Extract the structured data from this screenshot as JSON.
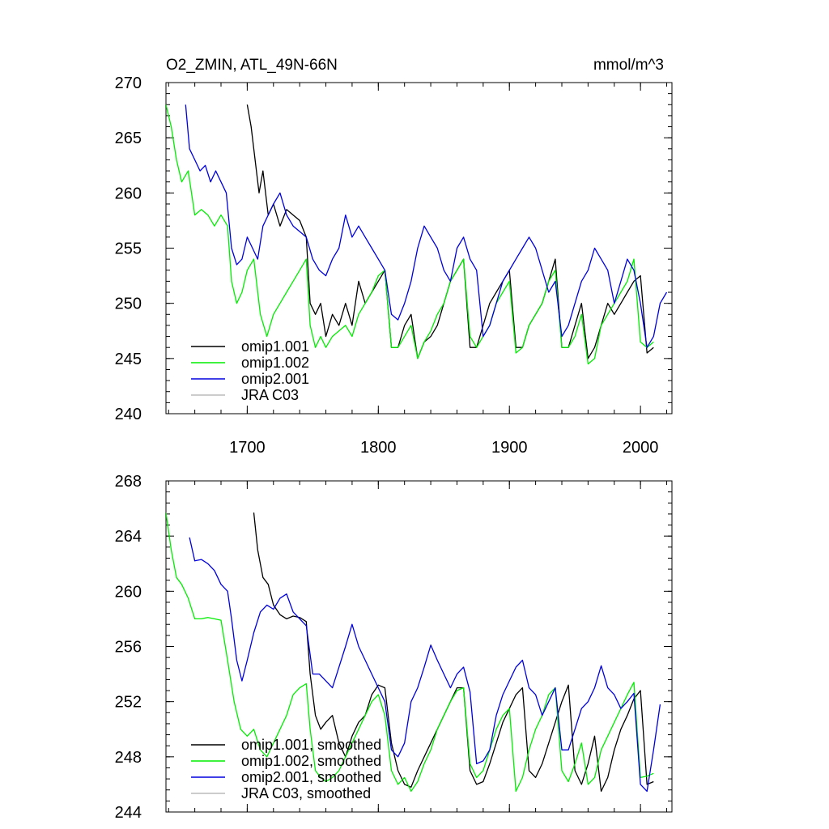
{
  "chart_data": [
    {
      "type": "line",
      "title": "O2_ZMIN, ATL_49N-66N",
      "units": "mmol/m^3",
      "xlabel": "",
      "ylabel": "",
      "xlim": [
        1638,
        2024
      ],
      "ylim": [
        240,
        270
      ],
      "x_ticks": [
        1700,
        1800,
        1900,
        2000
      ],
      "x_tick_labels": [
        "1700",
        "1800",
        "1900",
        "2000"
      ],
      "y_ticks": [
        240,
        245,
        250,
        255,
        260,
        265,
        270
      ],
      "y_tick_labels": [
        "240",
        "245",
        "250",
        "255",
        "260",
        "265",
        "270"
      ],
      "legend_position": "bottom-left",
      "series": [
        {
          "name": "omip1.001",
          "color": "#000000",
          "x": [
            1700,
            1703,
            1706,
            1709,
            1712,
            1716,
            1720,
            1725,
            1730,
            1735,
            1740,
            1745,
            1748,
            1752,
            1756,
            1760,
            1765,
            1770,
            1775,
            1780,
            1785,
            1790,
            1795,
            1800,
            1805,
            1810,
            1815,
            1820,
            1825,
            1830,
            1835,
            1840,
            1845,
            1850,
            1855,
            1860,
            1865,
            1870,
            1875,
            1880,
            1885,
            1890,
            1895,
            1900,
            1905,
            1910,
            1915,
            1920,
            1925,
            1930,
            1935,
            1940,
            1945,
            1950,
            1955,
            1960,
            1965,
            1970,
            1975,
            1980,
            1985,
            1990,
            1995,
            2000,
            2005,
            2010
          ],
          "y": [
            268,
            266,
            263,
            260,
            262,
            258,
            259,
            257,
            258.5,
            258,
            257.5,
            256,
            250,
            249,
            250,
            247,
            249,
            248,
            250,
            248,
            252,
            250,
            251,
            252,
            253,
            246,
            246,
            248,
            249,
            245,
            246.5,
            247,
            248,
            250,
            252,
            253,
            254,
            246,
            246,
            248,
            250,
            251,
            252,
            253,
            246,
            246,
            248,
            249,
            250,
            252,
            254,
            246,
            246,
            248,
            250,
            245,
            246,
            248,
            250,
            249,
            250,
            251,
            252,
            252.5,
            245.5,
            246
          ]
        },
        {
          "name": "omip1.002",
          "color": "#00ee00",
          "x": [
            1638,
            1642,
            1646,
            1650,
            1655,
            1660,
            1665,
            1670,
            1675,
            1680,
            1685,
            1688,
            1692,
            1696,
            1700,
            1705,
            1710,
            1715,
            1720,
            1725,
            1730,
            1735,
            1740,
            1745,
            1748,
            1752,
            1756,
            1760,
            1765,
            1770,
            1775,
            1780,
            1785,
            1790,
            1795,
            1800,
            1805,
            1810,
            1815,
            1820,
            1825,
            1830,
            1835,
            1840,
            1845,
            1850,
            1855,
            1860,
            1865,
            1870,
            1875,
            1880,
            1885,
            1890,
            1895,
            1900,
            1905,
            1910,
            1915,
            1920,
            1925,
            1930,
            1935,
            1940,
            1945,
            1950,
            1955,
            1960,
            1965,
            1970,
            1975,
            1980,
            1985,
            1990,
            1995,
            2000,
            2005,
            2010
          ],
          "y": [
            268,
            266,
            263,
            261,
            262,
            258,
            258.5,
            258,
            257,
            258,
            257,
            252,
            250,
            251,
            253,
            254,
            249,
            247,
            249,
            250,
            251,
            252,
            253,
            254,
            248,
            246,
            247,
            246,
            247,
            247.5,
            248,
            247,
            249,
            250,
            251,
            252.5,
            253,
            246,
            246,
            247,
            248,
            245,
            246.5,
            247.5,
            249,
            250,
            252,
            253,
            254,
            247,
            246,
            247,
            248,
            250,
            251,
            252,
            245.5,
            246,
            248,
            249,
            250,
            252,
            253,
            246,
            246,
            247,
            249,
            244.5,
            245,
            248,
            249,
            250,
            251,
            252,
            254,
            246.5,
            246,
            246.5
          ]
        },
        {
          "name": "omip2.001",
          "color": "#0000dd",
          "x": [
            1653,
            1656,
            1660,
            1664,
            1668,
            1672,
            1676,
            1680,
            1684,
            1688,
            1692,
            1696,
            1700,
            1704,
            1708,
            1712,
            1716,
            1720,
            1725,
            1730,
            1735,
            1740,
            1745,
            1750,
            1755,
            1760,
            1765,
            1770,
            1775,
            1780,
            1785,
            1790,
            1795,
            1800,
            1805,
            1810,
            1815,
            1820,
            1825,
            1830,
            1835,
            1840,
            1845,
            1850,
            1855,
            1860,
            1865,
            1870,
            1875,
            1880,
            1885,
            1890,
            1895,
            1900,
            1905,
            1910,
            1915,
            1920,
            1925,
            1930,
            1935,
            1940,
            1945,
            1950,
            1955,
            1960,
            1965,
            1970,
            1975,
            1980,
            1985,
            1990,
            1995,
            2000,
            2005,
            2010,
            2015,
            2020
          ],
          "y": [
            268,
            264,
            263,
            262,
            262.5,
            261,
            262,
            261,
            260,
            255,
            253.5,
            254,
            256,
            255,
            254,
            257,
            258,
            259,
            260,
            258,
            257,
            256.5,
            256,
            254,
            253,
            252.5,
            254,
            255,
            258,
            256,
            257,
            256,
            255,
            254,
            253,
            249,
            248.5,
            250,
            252,
            255,
            257,
            256,
            255,
            253,
            252,
            255,
            256,
            254,
            253,
            247,
            248,
            250,
            252,
            253,
            254,
            255,
            256,
            255,
            253,
            251,
            252,
            247,
            248,
            250,
            252,
            253,
            255,
            254,
            253,
            250,
            252,
            254,
            253,
            250,
            246,
            247,
            250,
            251
          ]
        }
      ],
      "legend": [
        "omip1.001",
        "omip1.002",
        "omip2.001",
        "JRA C03"
      ],
      "legend_colors": [
        "#000000",
        "#00ee00",
        "#0000dd",
        "#bbbbbb"
      ]
    },
    {
      "type": "line",
      "title": "",
      "xlabel": "",
      "ylabel": "",
      "xlim": [
        1638,
        2024
      ],
      "ylim": [
        244,
        268
      ],
      "x_ticks": [
        1700,
        1800,
        1900,
        2000
      ],
      "y_ticks": [
        244,
        248,
        252,
        256,
        260,
        264,
        268
      ],
      "y_tick_labels": [
        "244",
        "248",
        "252",
        "256",
        "260",
        "264",
        "268"
      ],
      "legend_position": "bottom-left",
      "series": [
        {
          "name": "omip1.001, smoothed",
          "color": "#000000",
          "x": [
            1705,
            1708,
            1712,
            1716,
            1720,
            1725,
            1730,
            1735,
            1740,
            1745,
            1748,
            1752,
            1756,
            1760,
            1765,
            1770,
            1775,
            1780,
            1785,
            1790,
            1795,
            1800,
            1805,
            1810,
            1815,
            1820,
            1825,
            1830,
            1835,
            1840,
            1845,
            1850,
            1855,
            1860,
            1865,
            1870,
            1875,
            1880,
            1885,
            1890,
            1895,
            1900,
            1905,
            1910,
            1915,
            1920,
            1925,
            1930,
            1935,
            1940,
            1945,
            1950,
            1955,
            1960,
            1965,
            1970,
            1975,
            1980,
            1985,
            1990,
            1995,
            2000,
            2005,
            2010
          ],
          "y": [
            265.7,
            263,
            261,
            260.5,
            259,
            258.3,
            258,
            258.2,
            258.1,
            257.8,
            254,
            251,
            250,
            250.5,
            251,
            249,
            248,
            249.5,
            250.5,
            251,
            252.5,
            253.2,
            253,
            249,
            247,
            246,
            245.8,
            247,
            248,
            249,
            250,
            251,
            252,
            253,
            253,
            247,
            246,
            246.2,
            247.5,
            249,
            250.5,
            251.5,
            252.5,
            253,
            247,
            246.5,
            247.5,
            249,
            250.5,
            252,
            253.2,
            247,
            246,
            247.5,
            249.5,
            245.5,
            246.5,
            248.5,
            250,
            251,
            252.2,
            252.8,
            246,
            246.2
          ]
        },
        {
          "name": "omip1.002, smoothed",
          "color": "#00ee00",
          "x": [
            1638,
            1642,
            1646,
            1650,
            1655,
            1660,
            1665,
            1670,
            1675,
            1680,
            1685,
            1690,
            1695,
            1700,
            1705,
            1710,
            1715,
            1720,
            1725,
            1730,
            1735,
            1740,
            1745,
            1748,
            1752,
            1756,
            1760,
            1765,
            1770,
            1775,
            1780,
            1785,
            1790,
            1795,
            1800,
            1805,
            1810,
            1815,
            1820,
            1825,
            1830,
            1835,
            1840,
            1845,
            1850,
            1855,
            1860,
            1865,
            1870,
            1875,
            1880,
            1885,
            1890,
            1895,
            1900,
            1905,
            1910,
            1915,
            1920,
            1925,
            1930,
            1935,
            1940,
            1945,
            1950,
            1955,
            1960,
            1965,
            1970,
            1975,
            1980,
            1985,
            1990,
            1995,
            2000,
            2005,
            2010
          ],
          "y": [
            265.7,
            263,
            261,
            260.5,
            259.5,
            258,
            258,
            258.1,
            258,
            257.9,
            255,
            252,
            250,
            249.5,
            250,
            248.5,
            248,
            249,
            250,
            251,
            252.5,
            253,
            253.3,
            250,
            247,
            246.5,
            246.2,
            246.5,
            247,
            248,
            249,
            250,
            251,
            252,
            252.5,
            251,
            247,
            246,
            246.5,
            245.5,
            246.2,
            247.5,
            248.5,
            250,
            251,
            252,
            252.8,
            253,
            247.5,
            246.5,
            247,
            248.5,
            250,
            251,
            251.5,
            245.5,
            246.5,
            248.5,
            250,
            251,
            252.5,
            253,
            247,
            246.2,
            247.5,
            249,
            246,
            246.5,
            248.5,
            249.5,
            250.5,
            251.5,
            252.5,
            253.4,
            246.5,
            246.6,
            246.8
          ]
        },
        {
          "name": "omip2.001, smoothed",
          "color": "#0000dd",
          "x": [
            1656,
            1660,
            1665,
            1670,
            1675,
            1680,
            1685,
            1688,
            1692,
            1696,
            1700,
            1705,
            1710,
            1715,
            1720,
            1725,
            1730,
            1735,
            1740,
            1745,
            1750,
            1755,
            1760,
            1765,
            1770,
            1775,
            1780,
            1785,
            1790,
            1795,
            1800,
            1805,
            1810,
            1815,
            1820,
            1825,
            1830,
            1835,
            1840,
            1845,
            1850,
            1855,
            1860,
            1865,
            1870,
            1875,
            1880,
            1885,
            1890,
            1895,
            1900,
            1905,
            1910,
            1915,
            1920,
            1925,
            1930,
            1935,
            1940,
            1945,
            1950,
            1955,
            1960,
            1965,
            1970,
            1975,
            1980,
            1985,
            1990,
            1995,
            2000,
            2005,
            2010,
            2015
          ],
          "y": [
            263.9,
            262.2,
            262.3,
            262,
            261.5,
            260.5,
            260,
            258,
            255,
            253.5,
            255,
            257,
            258.5,
            259,
            258.7,
            259.5,
            259.8,
            258.5,
            258,
            257.5,
            254,
            254,
            253.5,
            253,
            254.5,
            256,
            257.6,
            256,
            255,
            254,
            253,
            252,
            248.5,
            248,
            249,
            252,
            253,
            254.5,
            256.1,
            255,
            254,
            253,
            254,
            254.5,
            252.7,
            247.5,
            247.7,
            248.5,
            251,
            252.5,
            253.5,
            254.5,
            255,
            253,
            252.5,
            251,
            252,
            253,
            248.5,
            248.5,
            250,
            251.5,
            252,
            253,
            254.6,
            253,
            252.5,
            251.5,
            252,
            252.6,
            246,
            245.5,
            248.5,
            251.8
          ]
        }
      ],
      "legend": [
        "omip1.001, smoothed",
        "omip1.002, smoothed",
        "omip2.001, smoothed",
        "JRA C03, smoothed"
      ],
      "legend_colors": [
        "#000000",
        "#00ee00",
        "#0000dd",
        "#bbbbbb"
      ]
    }
  ]
}
